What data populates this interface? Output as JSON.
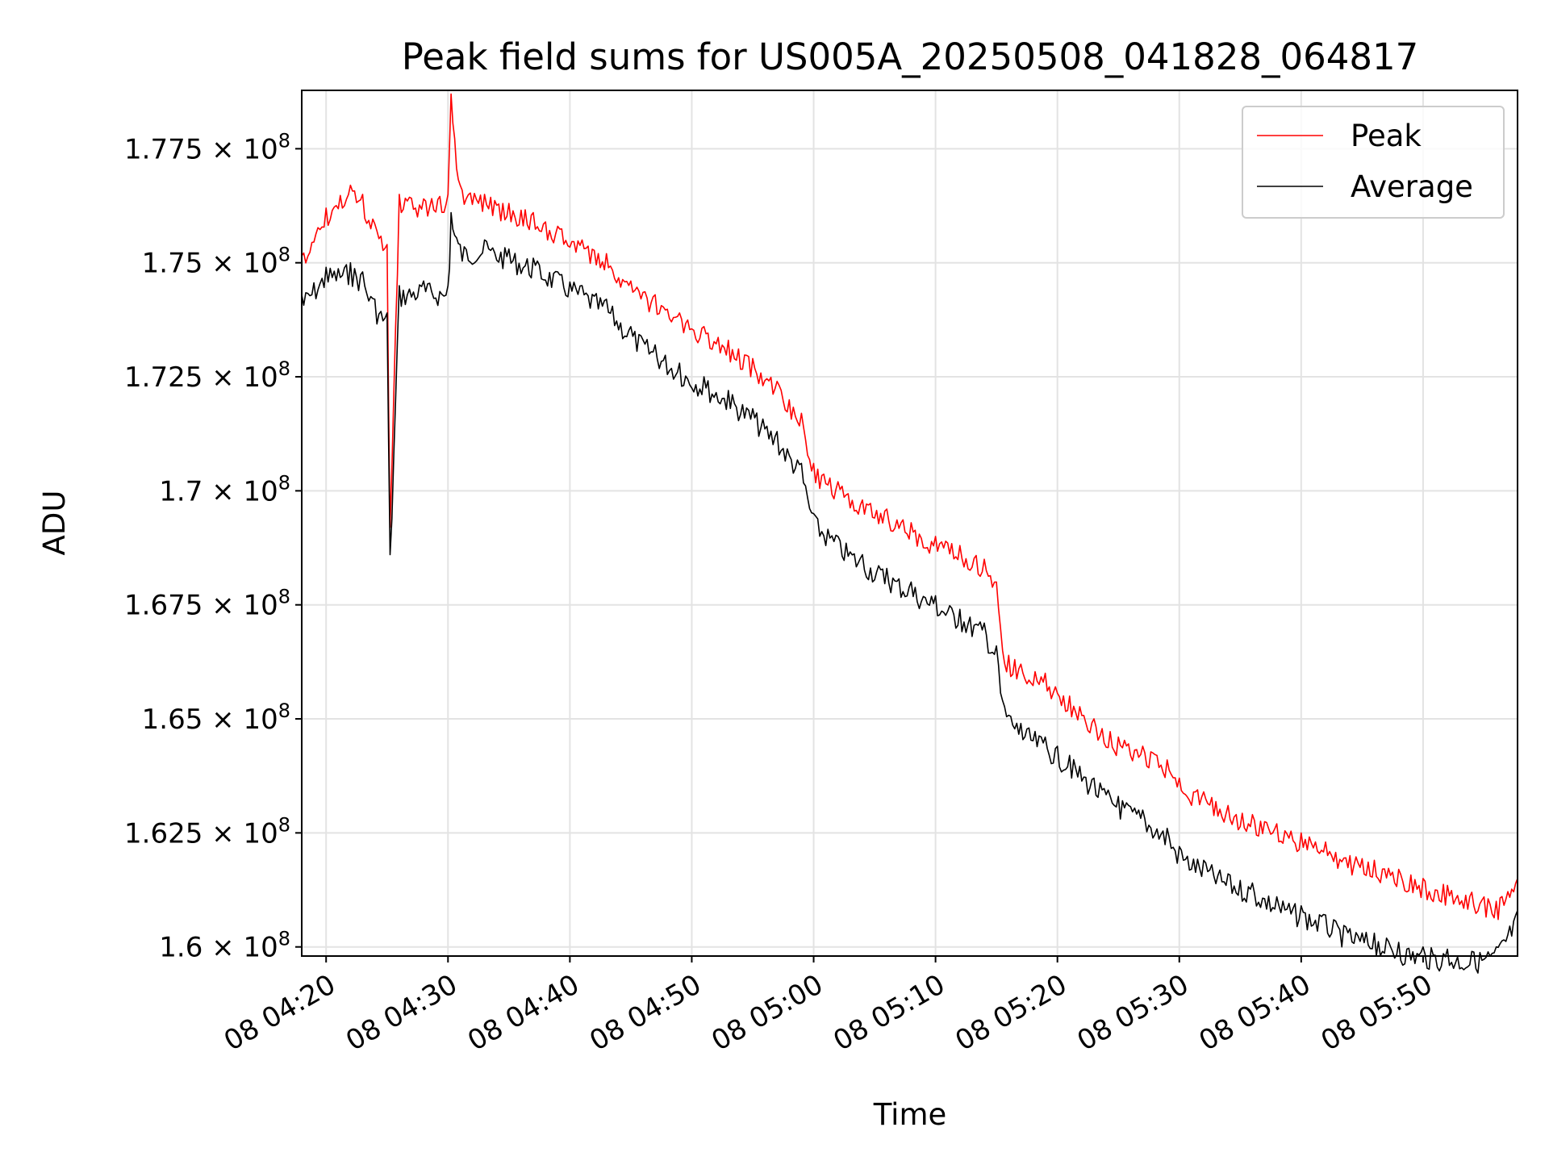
{
  "chart_data": {
    "type": "line",
    "title": "Peak field sums for US005A_20250508_041828_064817",
    "xlabel": "Time",
    "ylabel": "ADU",
    "grid": true,
    "legend_placement": "top-right",
    "xlim": [
      "2025-05-08T04:18:00",
      "2025-05-08T05:57:45"
    ],
    "ylim": [
      159800000,
      178780000
    ],
    "x_tick_labels": [
      "08 04:20",
      "08 04:30",
      "08 04:40",
      "08 04:50",
      "08 05:00",
      "08 05:10",
      "08 05:20",
      "08 05:30",
      "08 05:40",
      "08 05:50"
    ],
    "x_ticks": [
      "2025-05-08T04:20:00",
      "2025-05-08T04:30:00",
      "2025-05-08T04:40:00",
      "2025-05-08T04:50:00",
      "2025-05-08T05:00:00",
      "2025-05-08T05:10:00",
      "2025-05-08T05:20:00",
      "2025-05-08T05:30:00",
      "2025-05-08T05:40:00",
      "2025-05-08T05:50:00"
    ],
    "y_tick_labels": [
      {
        "mantissa": "1.6 × 10",
        "exp": "8",
        "value": 160000000
      },
      {
        "mantissa": "1.625 × 10",
        "exp": "8",
        "value": 162500000
      },
      {
        "mantissa": "1.65 × 10",
        "exp": "8",
        "value": 165000000
      },
      {
        "mantissa": "1.675 × 10",
        "exp": "8",
        "value": 167500000
      },
      {
        "mantissa": "1.7 × 10",
        "exp": "8",
        "value": 170000000
      },
      {
        "mantissa": "1.725 × 10",
        "exp": "8",
        "value": 172500000
      },
      {
        "mantissa": "1.75 × 10",
        "exp": "8",
        "value": 175000000
      },
      {
        "mantissa": "1.775 × 10",
        "exp": "8",
        "value": 177500000
      }
    ],
    "series": [
      {
        "name": "Peak",
        "color": "#ff0000",
        "x": [
          "04:18:00",
          "04:20:00",
          "04:22:00",
          "04:23:00",
          "04:24:00",
          "04:25:00",
          "04:25:15",
          "04:26:00",
          "04:28:00",
          "04:30:00",
          "04:30:15",
          "04:31:00",
          "04:33:00",
          "04:35:00",
          "04:37:00",
          "04:39:00",
          "04:41:00",
          "04:43:00",
          "04:45:00",
          "04:47:00",
          "04:49:00",
          "04:51:00",
          "04:53:00",
          "04:55:00",
          "04:57:00",
          "04:59:00",
          "05:00:00",
          "05:02:00",
          "05:04:00",
          "05:06:00",
          "05:08:00",
          "05:10:00",
          "05:12:00",
          "05:14:00",
          "05:15:00",
          "05:15:30",
          "05:17:00",
          "05:19:00",
          "05:21:00",
          "05:23:00",
          "05:25:00",
          "05:27:00",
          "05:29:00",
          "05:30:00",
          "05:32:00",
          "05:34:00",
          "05:36:00",
          "05:38:00",
          "05:40:00",
          "05:42:00",
          "05:44:00",
          "05:46:00",
          "05:48:00",
          "05:50:00",
          "05:52:00",
          "05:54:00",
          "05:56:00",
          "05:57:45"
        ],
        "values": [
          175150000,
          176200000,
          176700000,
          176500000,
          175850000,
          175400000,
          169200000,
          176500000,
          176400000,
          176500000,
          178700000,
          176700000,
          176500000,
          176300000,
          176100000,
          175800000,
          175500000,
          175200000,
          174600000,
          174300000,
          173900000,
          173600000,
          173300000,
          172900000,
          172400000,
          171700000,
          170600000,
          170200000,
          169800000,
          169600000,
          169300000,
          169000000,
          168800000,
          168500000,
          168000000,
          166500000,
          166200000,
          166000000,
          165500000,
          165000000,
          164600000,
          164400000,
          164100000,
          163700000,
          163400000,
          163100000,
          162900000,
          162700000,
          162500000,
          162300000,
          162000000,
          161900000,
          161700000,
          161500000,
          161350000,
          161200000,
          161000000,
          161500000
        ]
      },
      {
        "name": "Average",
        "color": "#000000",
        "x": [
          "04:18:00",
          "04:20:00",
          "04:22:00",
          "04:23:00",
          "04:24:00",
          "04:25:00",
          "04:25:15",
          "04:26:00",
          "04:28:00",
          "04:30:00",
          "04:30:15",
          "04:31:00",
          "04:33:00",
          "04:35:00",
          "04:37:00",
          "04:39:00",
          "04:41:00",
          "04:43:00",
          "04:45:00",
          "04:47:00",
          "04:49:00",
          "04:51:00",
          "04:53:00",
          "04:55:00",
          "04:57:00",
          "04:59:00",
          "05:00:00",
          "05:02:00",
          "05:04:00",
          "05:06:00",
          "05:08:00",
          "05:10:00",
          "05:12:00",
          "05:14:00",
          "05:15:00",
          "05:15:30",
          "05:17:00",
          "05:19:00",
          "05:21:00",
          "05:23:00",
          "05:25:00",
          "05:27:00",
          "05:29:00",
          "05:30:00",
          "05:32:00",
          "05:34:00",
          "05:36:00",
          "05:38:00",
          "05:40:00",
          "05:42:00",
          "05:44:00",
          "05:46:00",
          "05:48:00",
          "05:50:00",
          "05:52:00",
          "05:54:00",
          "05:56:00",
          "05:57:45"
        ],
        "values": [
          174300000,
          174900000,
          175000000,
          174800000,
          174200000,
          173900000,
          168600000,
          174500000,
          174600000,
          174500000,
          176100000,
          175400000,
          175500000,
          175300000,
          175100000,
          174800000,
          174500000,
          174200000,
          173600000,
          173200000,
          172800000,
          172500000,
          172200000,
          171800000,
          171300000,
          170600000,
          169500000,
          169000000,
          168600000,
          168300000,
          168000000,
          167700000,
          167400000,
          167100000,
          166600000,
          165400000,
          164900000,
          164600000,
          164200000,
          163700000,
          163300000,
          163000000,
          162600000,
          162200000,
          161900000,
          161600000,
          161400000,
          161100000,
          160900000,
          160700000,
          160400000,
          160300000,
          160100000,
          160000000,
          159950000,
          159900000,
          160000000,
          160800000
        ]
      }
    ]
  }
}
